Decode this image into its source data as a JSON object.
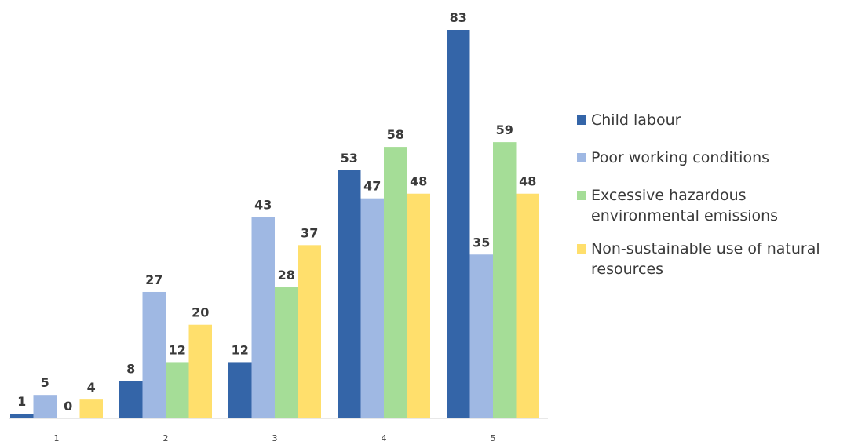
{
  "chart_data": {
    "type": "bar",
    "categories": [
      "1",
      "2",
      "3",
      "4",
      "5"
    ],
    "series": [
      {
        "name": "Child labour",
        "values": [
          1,
          8,
          12,
          53,
          83
        ],
        "color": "#3465a8"
      },
      {
        "name": "Poor working conditions",
        "values": [
          5,
          27,
          43,
          47,
          35
        ],
        "color": "#9fb8e3"
      },
      {
        "name": "Excessive hazardous environmental emissions",
        "values": [
          0,
          12,
          28,
          58,
          59
        ],
        "color": "#a5dd97"
      },
      {
        "name": "Non-sustainable use of natural resources",
        "values": [
          4,
          20,
          37,
          48,
          48
        ],
        "color": "#ffdf6c"
      }
    ],
    "ylim": [
      0,
      85
    ],
    "grid": false,
    "legend_position": "right"
  }
}
